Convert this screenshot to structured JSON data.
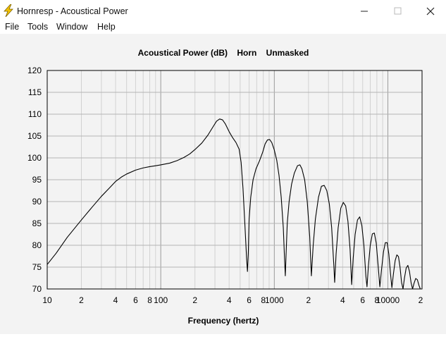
{
  "window": {
    "title": "Hornresp - Acoustical Power",
    "controls": {
      "minimize": "minimize-icon",
      "maximize": "maximize-icon",
      "close": "close-icon"
    }
  },
  "menu": [
    "File",
    "Tools",
    "Window",
    "Help"
  ],
  "chart_data": {
    "type": "line",
    "title": "Acoustical Power (dB)    Horn    Unmasked",
    "xlabel": "Frequency (hertz)",
    "ylabel": "",
    "x_scale": "log",
    "xlim": [
      10,
      20000
    ],
    "ylim": [
      70,
      120
    ],
    "yticks": [
      70,
      75,
      80,
      85,
      90,
      95,
      100,
      105,
      110,
      115,
      120
    ],
    "xtick_labels": [
      {
        "value": 10,
        "label": "10"
      },
      {
        "value": 20,
        "label": "2"
      },
      {
        "value": 40,
        "label": "4"
      },
      {
        "value": 60,
        "label": "6"
      },
      {
        "value": 80,
        "label": "8"
      },
      {
        "value": 100,
        "label": "100"
      },
      {
        "value": 200,
        "label": "2"
      },
      {
        "value": 400,
        "label": "4"
      },
      {
        "value": 600,
        "label": "6"
      },
      {
        "value": 800,
        "label": "8"
      },
      {
        "value": 1000,
        "label": "1000"
      },
      {
        "value": 2000,
        "label": "2"
      },
      {
        "value": 4000,
        "label": "4"
      },
      {
        "value": 6000,
        "label": "6"
      },
      {
        "value": 8000,
        "label": "8"
      },
      {
        "value": 10000,
        "label": "10000"
      },
      {
        "value": 20000,
        "label": "2"
      }
    ],
    "grid": true,
    "series": [
      {
        "color": "#000000",
        "points": [
          [
            10,
            75.6
          ],
          [
            12,
            78.2
          ],
          [
            15,
            81.8
          ],
          [
            20,
            85.8
          ],
          [
            25,
            88.8
          ],
          [
            30,
            91.2
          ],
          [
            35,
            93.0
          ],
          [
            40,
            94.6
          ],
          [
            45,
            95.6
          ],
          [
            50,
            96.3
          ],
          [
            60,
            97.2
          ],
          [
            70,
            97.7
          ],
          [
            80,
            98.0
          ],
          [
            90,
            98.2
          ],
          [
            100,
            98.4
          ],
          [
            120,
            98.8
          ],
          [
            140,
            99.4
          ],
          [
            160,
            100.1
          ],
          [
            180,
            100.9
          ],
          [
            200,
            101.9
          ],
          [
            230,
            103.4
          ],
          [
            260,
            105.2
          ],
          [
            290,
            107.2
          ],
          [
            310,
            108.4
          ],
          [
            330,
            108.9
          ],
          [
            350,
            108.7
          ],
          [
            370,
            107.8
          ],
          [
            400,
            106.0
          ],
          [
            430,
            104.6
          ],
          [
            460,
            103.5
          ],
          [
            490,
            102.0
          ],
          [
            510,
            99.0
          ],
          [
            530,
            93.0
          ],
          [
            550,
            85.0
          ],
          [
            570,
            77.0
          ],
          [
            580,
            74.0
          ],
          [
            590,
            78.0
          ],
          [
            600,
            86.0
          ],
          [
            620,
            91.0
          ],
          [
            650,
            95.0
          ],
          [
            690,
            97.5
          ],
          [
            740,
            99.3
          ],
          [
            790,
            101.3
          ],
          [
            830,
            103.2
          ],
          [
            870,
            104.1
          ],
          [
            910,
            104.2
          ],
          [
            950,
            103.5
          ],
          [
            1000,
            101.8
          ],
          [
            1050,
            99.5
          ],
          [
            1100,
            96.0
          ],
          [
            1150,
            91.0
          ],
          [
            1200,
            84.0
          ],
          [
            1230,
            77.0
          ],
          [
            1250,
            73.0
          ],
          [
            1270,
            78.0
          ],
          [
            1300,
            85.0
          ],
          [
            1350,
            90.0
          ],
          [
            1420,
            94.0
          ],
          [
            1500,
            96.5
          ],
          [
            1600,
            98.2
          ],
          [
            1680,
            98.4
          ],
          [
            1750,
            97.5
          ],
          [
            1850,
            95.0
          ],
          [
            1950,
            90.0
          ],
          [
            2050,
            82.0
          ],
          [
            2120,
            73.0
          ],
          [
            2200,
            80.0
          ],
          [
            2300,
            86.0
          ],
          [
            2450,
            91.0
          ],
          [
            2600,
            93.5
          ],
          [
            2750,
            93.7
          ],
          [
            2900,
            92.5
          ],
          [
            3050,
            89.5
          ],
          [
            3200,
            84.0
          ],
          [
            3350,
            75.0
          ],
          [
            3400,
            71.5
          ],
          [
            3500,
            78.0
          ],
          [
            3650,
            84.0
          ],
          [
            3850,
            88.5
          ],
          [
            4050,
            89.8
          ],
          [
            4250,
            89.0
          ],
          [
            4450,
            85.5
          ],
          [
            4650,
            79.0
          ],
          [
            4800,
            71.0
          ],
          [
            4950,
            77.0
          ],
          [
            5150,
            82.5
          ],
          [
            5400,
            85.8
          ],
          [
            5650,
            86.5
          ],
          [
            5900,
            84.5
          ],
          [
            6150,
            80.0
          ],
          [
            6400,
            73.0
          ],
          [
            6550,
            70.5
          ],
          [
            6750,
            75.5
          ],
          [
            7000,
            80.0
          ],
          [
            7300,
            82.6
          ],
          [
            7600,
            82.8
          ],
          [
            7900,
            80.5
          ],
          [
            8200,
            75.5
          ],
          [
            8500,
            70.5
          ],
          [
            8800,
            74.5
          ],
          [
            9150,
            78.5
          ],
          [
            9500,
            80.6
          ],
          [
            9850,
            80.6
          ],
          [
            10200,
            78.0
          ],
          [
            10550,
            73.5
          ],
          [
            10850,
            70.3
          ],
          [
            11200,
            73.5
          ],
          [
            11600,
            76.5
          ],
          [
            12000,
            77.8
          ],
          [
            12400,
            77.4
          ],
          [
            12800,
            75.0
          ],
          [
            13200,
            71.5
          ],
          [
            13600,
            70.0
          ],
          [
            14000,
            72.5
          ],
          [
            14500,
            74.8
          ],
          [
            15000,
            75.4
          ],
          [
            15500,
            74.0
          ],
          [
            16000,
            71.5
          ],
          [
            16500,
            70.0
          ],
          [
            17000,
            71.3
          ],
          [
            17600,
            72.4
          ],
          [
            18200,
            72.1
          ],
          [
            18800,
            70.8
          ],
          [
            19300,
            70.0
          ],
          [
            20000,
            70.0
          ]
        ]
      }
    ]
  }
}
